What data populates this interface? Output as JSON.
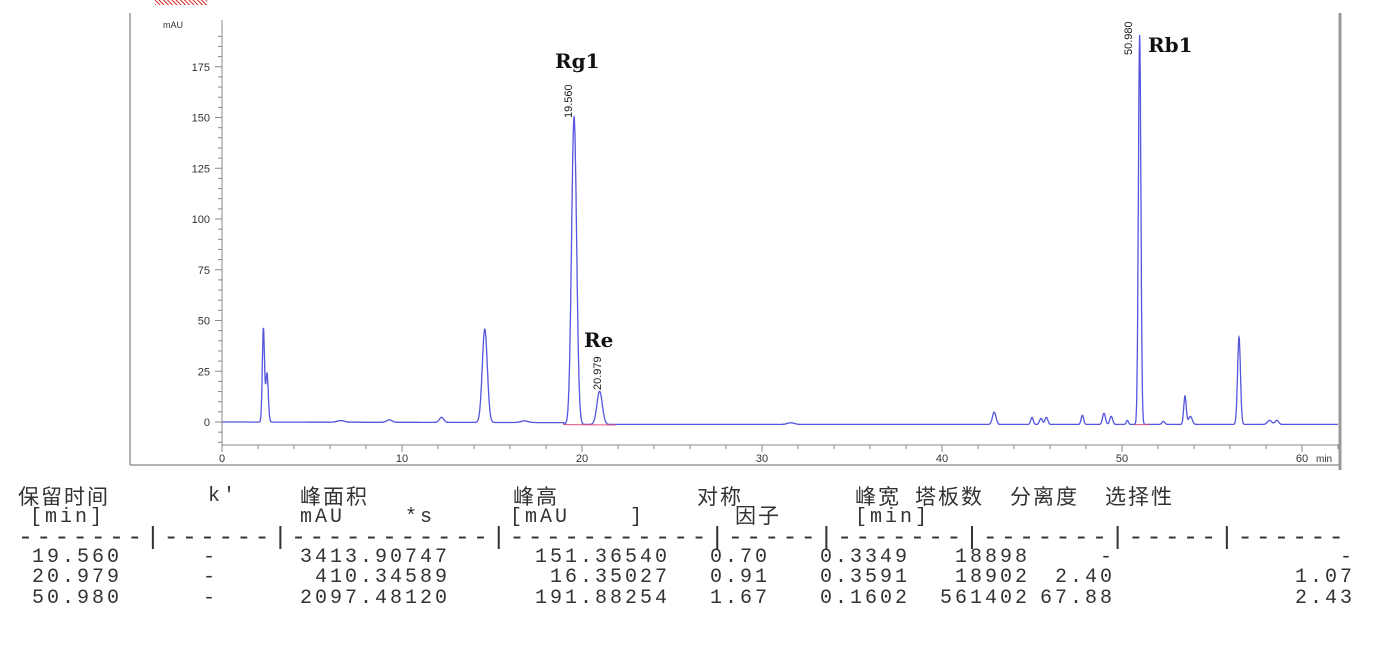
{
  "chart_data": {
    "type": "line",
    "title": "",
    "ylabel": "mAU",
    "xlabel": "min",
    "xlim": [
      0,
      62
    ],
    "ylim": [
      -13,
      195
    ],
    "x_ticks": [
      0,
      10,
      20,
      30,
      40,
      50,
      60
    ],
    "y_ticks": [
      0,
      25,
      50,
      75,
      100,
      125,
      150,
      175
    ],
    "line_color": "#5555dd",
    "baseline_color": "#e0507a",
    "peaks": [
      {
        "rt": 2.3,
        "height": 46,
        "width": 0.06
      },
      {
        "rt": 2.5,
        "height": 24,
        "width": 0.07
      },
      {
        "rt": 6.6,
        "height": 0.8,
        "width": 0.2
      },
      {
        "rt": 9.3,
        "height": 1.2,
        "width": 0.15
      },
      {
        "rt": 12.2,
        "height": 2.5,
        "width": 0.12
      },
      {
        "rt": 14.6,
        "height": 46,
        "width": 0.14
      },
      {
        "rt": 16.8,
        "height": 0.8,
        "width": 0.2
      },
      {
        "rt": 19.56,
        "height": 151.37,
        "width": 0.14
      },
      {
        "rt": 20.979,
        "height": 16.35,
        "width": 0.15
      },
      {
        "rt": 31.6,
        "height": 0.8,
        "width": 0.2
      },
      {
        "rt": 42.9,
        "height": 6,
        "width": 0.1
      },
      {
        "rt": 45.0,
        "height": 3.5,
        "width": 0.07
      },
      {
        "rt": 45.5,
        "height": 3,
        "width": 0.08
      },
      {
        "rt": 45.8,
        "height": 3.5,
        "width": 0.08
      },
      {
        "rt": 47.8,
        "height": 4.5,
        "width": 0.07
      },
      {
        "rt": 49.0,
        "height": 5.5,
        "width": 0.08
      },
      {
        "rt": 49.4,
        "height": 4,
        "width": 0.08
      },
      {
        "rt": 50.3,
        "height": 2,
        "width": 0.06
      },
      {
        "rt": 50.98,
        "height": 191.88,
        "width": 0.07
      },
      {
        "rt": 52.3,
        "height": 1.5,
        "width": 0.08
      },
      {
        "rt": 53.5,
        "height": 14,
        "width": 0.07
      },
      {
        "rt": 53.8,
        "height": 4,
        "width": 0.1
      },
      {
        "rt": 56.5,
        "height": 43,
        "width": 0.08
      },
      {
        "rt": 58.2,
        "height": 2,
        "width": 0.12
      },
      {
        "rt": 58.6,
        "height": 2,
        "width": 0.1
      }
    ],
    "annotations": [
      {
        "name": "Rg1",
        "rt": 19.56,
        "label": "19.560"
      },
      {
        "name": "Re",
        "rt": 20.979,
        "label": "20.979"
      },
      {
        "name": "Rb1",
        "rt": 50.98,
        "label": "50.980"
      }
    ]
  },
  "table": {
    "headers_cn": [
      "保留时间",
      "k'",
      "峰面积",
      "峰高",
      "对称",
      "峰宽",
      "塔板数",
      "分离度",
      "选择性"
    ],
    "headers_unit": [
      "[min]",
      "mAU    *s",
      "[mAU    ]",
      "因子",
      "[min]"
    ],
    "separator": "-------|------|-----------|-----------|-----|-------|-------|-----|------",
    "rows": [
      [
        "19.560",
        "-",
        "3413.90747",
        "151.36540",
        "0.70",
        "0.3349",
        "18898",
        "-",
        "-"
      ],
      [
        "20.979",
        "-",
        "410.34589",
        "16.35027",
        "0.91",
        "0.3591",
        "18902",
        "2.40",
        "1.07"
      ],
      [
        "50.980",
        "-",
        "2097.48120",
        "191.88254",
        "1.67",
        "0.1602",
        "561402",
        "67.88",
        "2.43"
      ]
    ]
  }
}
